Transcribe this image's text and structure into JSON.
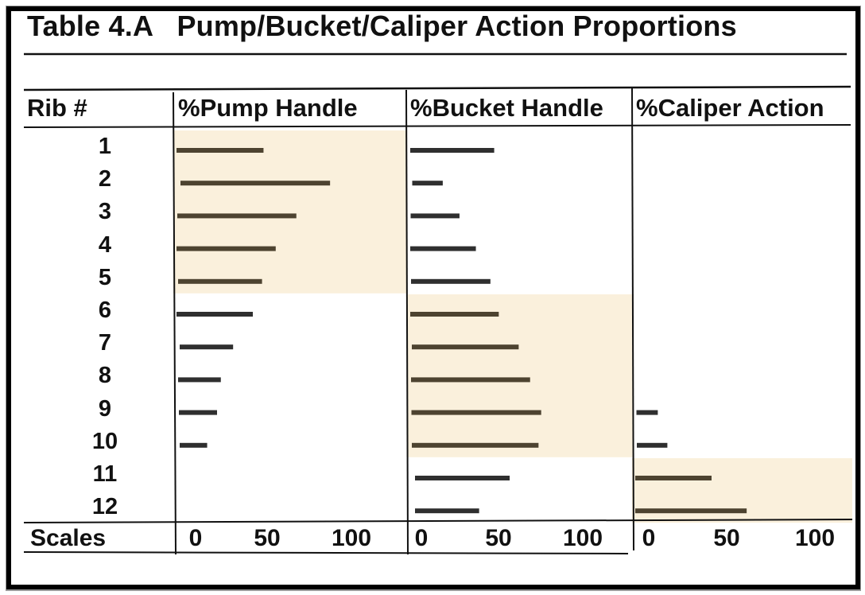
{
  "title": "Table 4.A   Pump/Bucket/Caliper Action Proportions",
  "rib_header": "Rib #",
  "scales_label": "Scales",
  "chart_data": {
    "type": "bar",
    "orientation": "horizontal",
    "categories": [
      "1",
      "2",
      "3",
      "4",
      "5",
      "6",
      "7",
      "8",
      "9",
      "10",
      "11",
      "12"
    ],
    "series": [
      {
        "name": "%Pump Handle",
        "values": [
          57,
          98,
          78,
          65,
          55,
          50,
          35,
          28,
          25,
          18,
          null,
          null
        ],
        "highlighted_ribs": [
          "1",
          "2",
          "3",
          "4",
          "5"
        ]
      },
      {
        "name": "%Bucket Handle",
        "values": [
          55,
          20,
          32,
          43,
          52,
          58,
          70,
          78,
          85,
          83,
          62,
          42
        ],
        "highlighted_ribs": [
          "6",
          "7",
          "8",
          "9",
          "10"
        ]
      },
      {
        "name": "%Caliper Action",
        "values": [
          null,
          null,
          null,
          null,
          null,
          null,
          null,
          null,
          14,
          20,
          50,
          73
        ],
        "highlighted_ribs": [
          "11",
          "12"
        ]
      }
    ],
    "scale_ticks": [
      "0",
      "50",
      "100"
    ],
    "xlim": [
      0,
      120
    ],
    "highlight_color": "#faf0dc",
    "bar_color": "#2f2f2f",
    "highlighted_bar_color": "#4d4330"
  }
}
